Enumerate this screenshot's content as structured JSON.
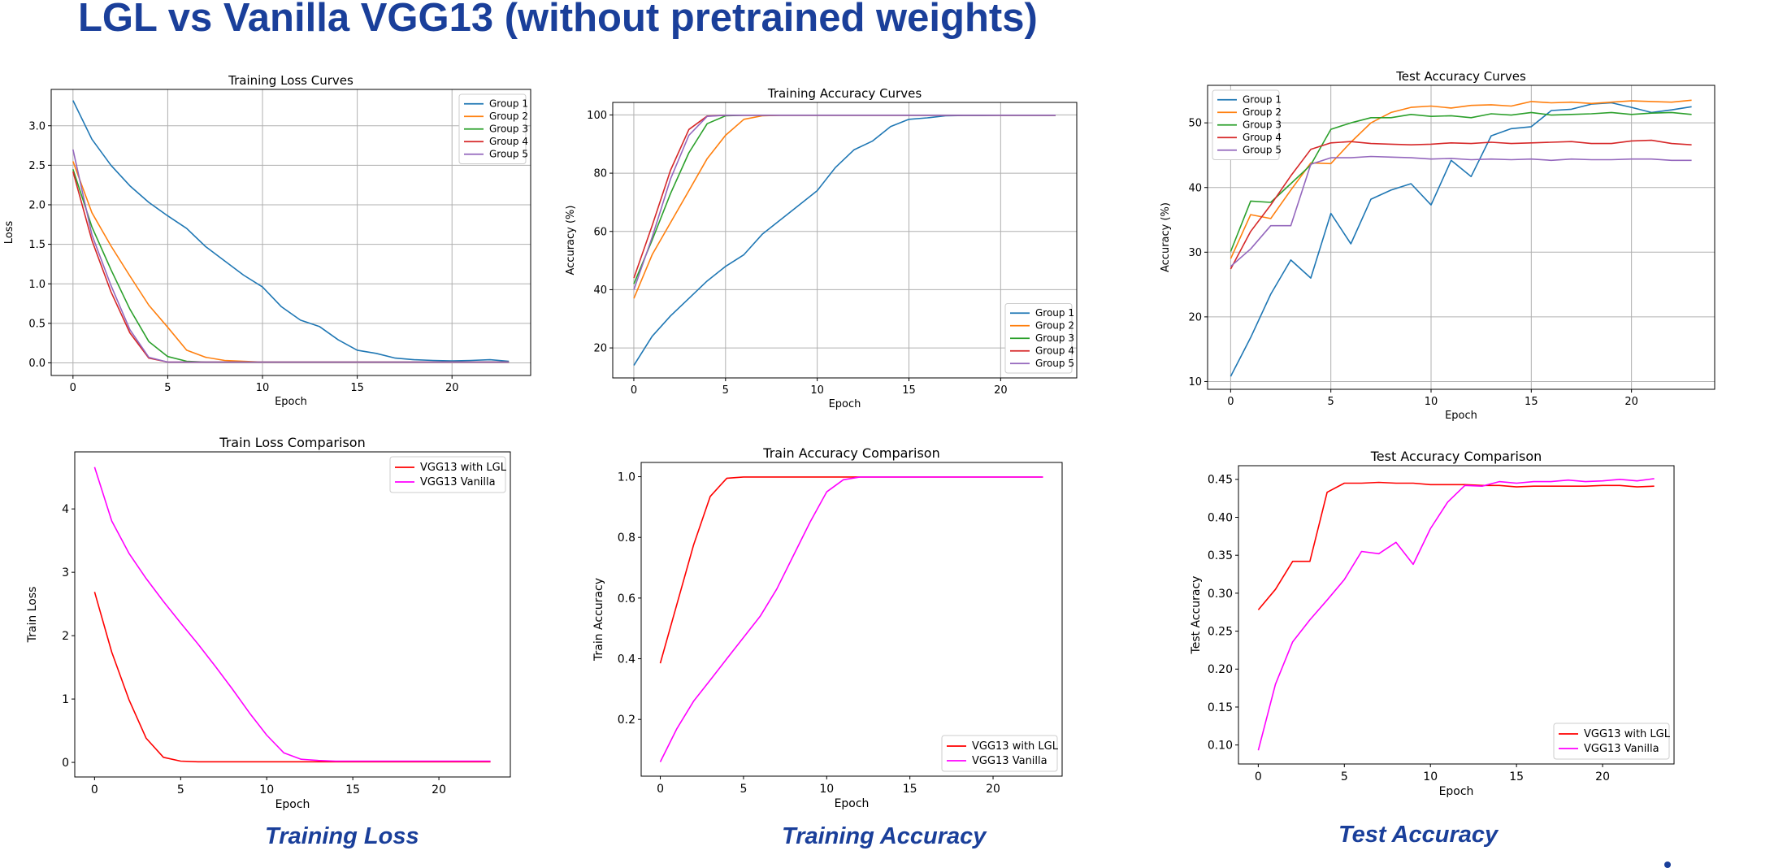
{
  "slide": {
    "title": "LGL vs Vanilla VGG13 (without pretrained weights)",
    "captions": [
      "Training Loss",
      "Training Accuracy",
      "Test Accuracy"
    ],
    "accent_color": "#1a3f9a"
  },
  "chart_data": [
    {
      "type": "line",
      "title": "Training Loss Curves",
      "xlabel": "Epoch",
      "ylabel": "Loss",
      "xlim": [
        -1.15,
        24.15
      ],
      "ylim": [
        -0.16,
        3.46
      ],
      "xticks": [
        0,
        5,
        10,
        15,
        20
      ],
      "yticks": [
        0.0,
        0.5,
        1.0,
        1.5,
        2.0,
        2.5,
        3.0
      ],
      "ytick_labels": [
        "0.0",
        "0.5",
        "1.0",
        "1.5",
        "2.0",
        "2.5",
        "3.0"
      ],
      "grid": true,
      "legend": "top-right",
      "x": [
        0,
        1,
        2,
        3,
        4,
        5,
        6,
        7,
        8,
        9,
        10,
        11,
        12,
        13,
        14,
        15,
        16,
        17,
        18,
        19,
        20,
        21,
        22,
        23
      ],
      "series": [
        {
          "name": "Group 1",
          "color": "#1f77b4",
          "values": [
            3.32,
            2.83,
            2.5,
            2.24,
            2.03,
            1.86,
            1.7,
            1.47,
            1.29,
            1.11,
            0.96,
            0.71,
            0.54,
            0.46,
            0.29,
            0.16,
            0.12,
            0.06,
            0.04,
            0.03,
            0.025,
            0.03,
            0.04,
            0.02
          ]
        },
        {
          "name": "Group 2",
          "color": "#ff7f0e",
          "values": [
            2.55,
            1.9,
            1.48,
            1.1,
            0.73,
            0.45,
            0.16,
            0.07,
            0.03,
            0.02,
            0.01,
            0.01,
            0.01,
            0.01,
            0.01,
            0.01,
            0.01,
            0.01,
            0.01,
            0.01,
            0.01,
            0.01,
            0.01,
            0.01
          ]
        },
        {
          "name": "Group 3",
          "color": "#2ca02c",
          "values": [
            2.45,
            1.72,
            1.18,
            0.68,
            0.27,
            0.08,
            0.02,
            0.01,
            0.01,
            0.01,
            0.01,
            0.01,
            0.01,
            0.01,
            0.01,
            0.01,
            0.01,
            0.01,
            0.01,
            0.01,
            0.01,
            0.01,
            0.01,
            0.01
          ]
        },
        {
          "name": "Group 4",
          "color": "#d62728",
          "values": [
            2.42,
            1.55,
            0.9,
            0.38,
            0.06,
            0.01,
            0.01,
            0.01,
            0.01,
            0.01,
            0.01,
            0.01,
            0.01,
            0.01,
            0.01,
            0.01,
            0.01,
            0.01,
            0.01,
            0.01,
            0.01,
            0.01,
            0.01,
            0.01
          ]
        },
        {
          "name": "Group 5",
          "color": "#9467bd",
          "values": [
            2.7,
            1.62,
            0.98,
            0.42,
            0.07,
            0.01,
            0.01,
            0.01,
            0.01,
            0.01,
            0.01,
            0.01,
            0.01,
            0.01,
            0.01,
            0.01,
            0.01,
            0.01,
            0.01,
            0.01,
            0.01,
            0.01,
            0.01,
            0.01
          ]
        }
      ]
    },
    {
      "type": "line",
      "title": "Training Accuracy Curves",
      "xlabel": "Epoch",
      "ylabel": "Accuracy (%)",
      "xlim": [
        -1.15,
        24.15
      ],
      "ylim": [
        9.7,
        104.3
      ],
      "xticks": [
        0,
        5,
        10,
        15,
        20
      ],
      "yticks": [
        20,
        40,
        60,
        80,
        100
      ],
      "ytick_labels": [
        "20",
        "40",
        "60",
        "80",
        "100"
      ],
      "grid": true,
      "legend": "bottom-right",
      "x": [
        0,
        1,
        2,
        3,
        4,
        5,
        6,
        7,
        8,
        9,
        10,
        11,
        12,
        13,
        14,
        15,
        16,
        17,
        18,
        19,
        20,
        21,
        22,
        23
      ],
      "series": [
        {
          "name": "Group 1",
          "color": "#1f77b4",
          "values": [
            14,
            24,
            31,
            37,
            43,
            48,
            52,
            59,
            64,
            69,
            74,
            82,
            88,
            91,
            96,
            98.5,
            99,
            99.7,
            99.8,
            99.8,
            99.9,
            99.9,
            99.9,
            99.9
          ]
        },
        {
          "name": "Group 2",
          "color": "#ff7f0e",
          "values": [
            37,
            52,
            63,
            74,
            85,
            93,
            98.5,
            99.7,
            99.9,
            99.9,
            99.9,
            99.9,
            99.9,
            99.9,
            99.9,
            99.9,
            99.9,
            99.9,
            99.9,
            99.9,
            99.9,
            99.9,
            99.9,
            99.9
          ]
        },
        {
          "name": "Group 3",
          "color": "#2ca02c",
          "values": [
            42,
            57,
            73,
            87,
            97,
            99.7,
            99.9,
            99.9,
            99.9,
            99.9,
            99.9,
            99.9,
            99.9,
            99.9,
            99.9,
            99.9,
            99.9,
            99.9,
            99.9,
            99.9,
            99.9,
            99.9,
            99.9,
            99.9
          ]
        },
        {
          "name": "Group 4",
          "color": "#d62728",
          "values": [
            44,
            62,
            81,
            95,
            99.6,
            99.9,
            99.9,
            99.9,
            99.9,
            99.9,
            99.9,
            99.9,
            99.9,
            99.9,
            99.9,
            99.9,
            99.9,
            99.9,
            99.9,
            99.9,
            99.9,
            99.9,
            99.9,
            99.9
          ]
        },
        {
          "name": "Group 5",
          "color": "#9467bd",
          "values": [
            40,
            58,
            78,
            93,
            99.5,
            99.9,
            99.9,
            99.9,
            99.9,
            99.9,
            99.9,
            99.9,
            99.9,
            99.9,
            99.9,
            99.9,
            99.9,
            99.9,
            99.9,
            99.9,
            99.9,
            99.9,
            99.9,
            99.9
          ]
        }
      ]
    },
    {
      "type": "line",
      "title": "Test Accuracy Curves",
      "xlabel": "Epoch",
      "ylabel": "Accuracy (%)",
      "xlim": [
        -1.15,
        24.15
      ],
      "ylim": [
        8.8,
        55.8
      ],
      "xticks": [
        0,
        5,
        10,
        15,
        20
      ],
      "yticks": [
        10,
        20,
        30,
        40,
        50
      ],
      "ytick_labels": [
        "10",
        "20",
        "30",
        "40",
        "50"
      ],
      "grid": true,
      "legend": "top-left",
      "x": [
        0,
        1,
        2,
        3,
        4,
        5,
        6,
        7,
        8,
        9,
        10,
        11,
        12,
        13,
        14,
        15,
        16,
        17,
        18,
        19,
        20,
        21,
        22,
        23
      ],
      "series": [
        {
          "name": "Group 1",
          "color": "#1f77b4",
          "values": [
            10.8,
            16.8,
            23.5,
            28.8,
            26.0,
            36.0,
            31.3,
            38.2,
            39.6,
            40.6,
            37.3,
            44.2,
            41.7,
            48.0,
            49.1,
            49.4,
            51.9,
            52.1,
            52.9,
            53.1,
            52.4,
            51.6,
            52.0,
            52.5
          ]
        },
        {
          "name": "Group 2",
          "color": "#ff7f0e",
          "values": [
            29.0,
            35.8,
            35.2,
            39.6,
            43.8,
            43.7,
            47.0,
            50.0,
            51.6,
            52.4,
            52.6,
            52.3,
            52.7,
            52.8,
            52.6,
            53.3,
            53.1,
            53.2,
            53.0,
            53.2,
            53.4,
            53.3,
            53.2,
            53.5
          ]
        },
        {
          "name": "Group 3",
          "color": "#2ca02c",
          "values": [
            30.1,
            37.9,
            37.7,
            40.6,
            43.5,
            49.0,
            50.0,
            50.8,
            50.8,
            51.3,
            51.0,
            51.1,
            50.8,
            51.4,
            51.2,
            51.6,
            51.2,
            51.3,
            51.4,
            51.6,
            51.3,
            51.5,
            51.6,
            51.3
          ]
        },
        {
          "name": "Group 4",
          "color": "#d62728",
          "values": [
            27.4,
            33.2,
            37.3,
            41.8,
            45.9,
            46.9,
            47.1,
            46.8,
            46.7,
            46.6,
            46.7,
            46.9,
            46.8,
            47.0,
            46.8,
            46.9,
            47.0,
            47.1,
            46.8,
            46.8,
            47.2,
            47.3,
            46.8,
            46.6
          ]
        },
        {
          "name": "Group 5",
          "color": "#9467bd",
          "values": [
            27.8,
            30.5,
            34.1,
            34.1,
            43.6,
            44.6,
            44.6,
            44.8,
            44.7,
            44.6,
            44.4,
            44.5,
            44.3,
            44.4,
            44.3,
            44.4,
            44.2,
            44.4,
            44.3,
            44.3,
            44.4,
            44.4,
            44.2,
            44.2
          ]
        }
      ]
    },
    {
      "type": "line",
      "title": "Train Loss Comparison",
      "xlabel": "Epoch",
      "ylabel": "Train Loss",
      "xlim": [
        -1.15,
        24.15
      ],
      "ylim": [
        -0.23,
        4.9
      ],
      "xticks": [
        0,
        5,
        10,
        15,
        20
      ],
      "yticks": [
        0,
        1,
        2,
        3,
        4
      ],
      "ytick_labels": [
        "0",
        "1",
        "2",
        "3",
        "4"
      ],
      "grid": false,
      "legend": "top-right",
      "x": [
        0,
        1,
        2,
        3,
        4,
        5,
        6,
        7,
        8,
        9,
        10,
        11,
        12,
        13,
        14,
        15,
        16,
        17,
        18,
        19,
        20,
        21,
        22,
        23
      ],
      "series": [
        {
          "name": "VGG13 with LGL",
          "color": "#ff0000",
          "values": [
            2.69,
            1.74,
            0.99,
            0.38,
            0.08,
            0.02,
            0.01,
            0.01,
            0.01,
            0.01,
            0.01,
            0.01,
            0.01,
            0.01,
            0.01,
            0.01,
            0.01,
            0.01,
            0.01,
            0.01,
            0.01,
            0.01,
            0.01,
            0.01
          ]
        },
        {
          "name": "VGG13 Vanilla",
          "color": "#ff00ff",
          "values": [
            4.66,
            3.81,
            3.3,
            2.9,
            2.54,
            2.2,
            1.87,
            1.52,
            1.16,
            0.78,
            0.43,
            0.15,
            0.05,
            0.03,
            0.02,
            0.02,
            0.02,
            0.02,
            0.02,
            0.02,
            0.02,
            0.02,
            0.02,
            0.02
          ]
        }
      ]
    },
    {
      "type": "line",
      "title": "Train Accuracy Comparison",
      "xlabel": "Epoch",
      "ylabel": "Train Accuracy",
      "xlim": [
        -1.15,
        24.15
      ],
      "ylim": [
        0.013,
        1.047
      ],
      "xticks": [
        0,
        5,
        10,
        15,
        20
      ],
      "yticks": [
        0.2,
        0.4,
        0.6,
        0.8,
        1.0
      ],
      "ytick_labels": [
        "0.2",
        "0.4",
        "0.6",
        "0.8",
        "1.0"
      ],
      "grid": false,
      "legend": "bottom-right",
      "x": [
        0,
        1,
        2,
        3,
        4,
        5,
        6,
        7,
        8,
        9,
        10,
        11,
        12,
        13,
        14,
        15,
        16,
        17,
        18,
        19,
        20,
        21,
        22,
        23
      ],
      "series": [
        {
          "name": "VGG13 with LGL",
          "color": "#ff0000",
          "values": [
            0.385,
            0.58,
            0.775,
            0.935,
            0.995,
            0.999,
            0.999,
            0.999,
            0.999,
            0.999,
            0.999,
            0.999,
            0.999,
            0.999,
            0.999,
            0.999,
            0.999,
            0.999,
            0.999,
            0.999,
            0.999,
            0.999,
            0.999,
            0.999
          ]
        },
        {
          "name": "VGG13 Vanilla",
          "color": "#ff00ff",
          "values": [
            0.06,
            0.17,
            0.26,
            0.33,
            0.4,
            0.47,
            0.54,
            0.63,
            0.74,
            0.85,
            0.95,
            0.99,
            0.999,
            0.999,
            0.999,
            0.999,
            0.999,
            0.999,
            0.999,
            0.999,
            0.999,
            0.999,
            0.999,
            0.999
          ]
        }
      ]
    },
    {
      "type": "line",
      "title": "Test Accuracy Comparison",
      "xlabel": "Epoch",
      "ylabel": "Test Accuracy",
      "xlim": [
        -1.15,
        24.15
      ],
      "ylim": [
        0.075,
        0.468
      ],
      "xticks": [
        0,
        5,
        10,
        15,
        20
      ],
      "yticks": [
        0.1,
        0.15,
        0.2,
        0.25,
        0.3,
        0.35,
        0.4,
        0.45
      ],
      "ytick_labels": [
        "0.10",
        "0.15",
        "0.20",
        "0.25",
        "0.30",
        "0.35",
        "0.40",
        "0.45"
      ],
      "grid": false,
      "legend": "bottom-right",
      "x": [
        0,
        1,
        2,
        3,
        4,
        5,
        6,
        7,
        8,
        9,
        10,
        11,
        12,
        13,
        14,
        15,
        16,
        17,
        18,
        19,
        20,
        21,
        22,
        23
      ],
      "series": [
        {
          "name": "VGG13 with LGL",
          "color": "#ff0000",
          "values": [
            0.278,
            0.305,
            0.342,
            0.342,
            0.433,
            0.445,
            0.445,
            0.446,
            0.445,
            0.445,
            0.443,
            0.443,
            0.443,
            0.442,
            0.442,
            0.44,
            0.441,
            0.441,
            0.441,
            0.441,
            0.442,
            0.442,
            0.44,
            0.441
          ]
        },
        {
          "name": "VGG13 Vanilla",
          "color": "#ff00ff",
          "values": [
            0.093,
            0.18,
            0.236,
            0.265,
            0.291,
            0.318,
            0.355,
            0.352,
            0.367,
            0.338,
            0.385,
            0.42,
            0.442,
            0.441,
            0.447,
            0.445,
            0.447,
            0.447,
            0.449,
            0.447,
            0.448,
            0.45,
            0.448,
            0.451
          ]
        }
      ]
    }
  ]
}
